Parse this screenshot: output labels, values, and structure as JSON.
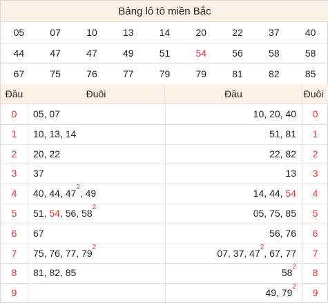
{
  "title": "Bảng lô tô miền Bắc",
  "grid": [
    [
      "05",
      "07",
      "10",
      "13",
      "14",
      "20",
      "22",
      "37",
      "40"
    ],
    [
      "44",
      "47",
      "47",
      "49",
      "51",
      "54",
      "56",
      "58",
      "58"
    ],
    [
      "67",
      "75",
      "76",
      "77",
      "79",
      "79",
      "81",
      "82",
      "85"
    ]
  ],
  "grid_highlight": [
    [
      1,
      5
    ]
  ],
  "headers": {
    "left_dau": "Đầu",
    "left_duoi": "Đuôi",
    "right_dau": "Đầu",
    "right_duoi": "Đuôi"
  },
  "left_rows": [
    {
      "num": "0",
      "items": [
        {
          "v": "05"
        },
        {
          "v": "07"
        }
      ]
    },
    {
      "num": "1",
      "items": [
        {
          "v": "10"
        },
        {
          "v": "13"
        },
        {
          "v": "14"
        }
      ]
    },
    {
      "num": "2",
      "items": [
        {
          "v": "20"
        },
        {
          "v": "22"
        }
      ]
    },
    {
      "num": "3",
      "items": [
        {
          "v": "37"
        }
      ]
    },
    {
      "num": "4",
      "items": [
        {
          "v": "40"
        },
        {
          "v": "44"
        },
        {
          "v": "47",
          "sup": "2"
        },
        {
          "v": "49"
        }
      ]
    },
    {
      "num": "5",
      "items": [
        {
          "v": "51"
        },
        {
          "v": "54",
          "red": true
        },
        {
          "v": "56"
        },
        {
          "v": "58",
          "sup": "2"
        }
      ]
    },
    {
      "num": "6",
      "items": [
        {
          "v": "67"
        }
      ]
    },
    {
      "num": "7",
      "items": [
        {
          "v": "75"
        },
        {
          "v": "76"
        },
        {
          "v": "77"
        },
        {
          "v": "79",
          "sup": "2"
        }
      ]
    },
    {
      "num": "8",
      "items": [
        {
          "v": "81"
        },
        {
          "v": "82"
        },
        {
          "v": "85"
        }
      ]
    },
    {
      "num": "9",
      "items": []
    }
  ],
  "right_rows": [
    {
      "num": "0",
      "items": [
        {
          "v": "10"
        },
        {
          "v": "20"
        },
        {
          "v": "40"
        }
      ]
    },
    {
      "num": "1",
      "items": [
        {
          "v": "51"
        },
        {
          "v": "81"
        }
      ]
    },
    {
      "num": "2",
      "items": [
        {
          "v": "22"
        },
        {
          "v": "82"
        }
      ]
    },
    {
      "num": "3",
      "items": [
        {
          "v": "13"
        }
      ]
    },
    {
      "num": "4",
      "items": [
        {
          "v": "14"
        },
        {
          "v": "44"
        },
        {
          "v": "54",
          "red": true
        }
      ]
    },
    {
      "num": "5",
      "items": [
        {
          "v": "05"
        },
        {
          "v": "75"
        },
        {
          "v": "85"
        }
      ]
    },
    {
      "num": "6",
      "items": [
        {
          "v": "56"
        },
        {
          "v": "76"
        }
      ]
    },
    {
      "num": "7",
      "items": [
        {
          "v": "07"
        },
        {
          "v": "37"
        },
        {
          "v": "47",
          "sup": "2"
        },
        {
          "v": "67"
        },
        {
          "v": "77"
        }
      ]
    },
    {
      "num": "8",
      "items": [
        {
          "v": "58",
          "sup": "2"
        }
      ]
    },
    {
      "num": "9",
      "items": [
        {
          "v": "49"
        },
        {
          "v": "79",
          "sup": "2"
        }
      ]
    }
  ],
  "colors": {
    "accent_red": "#e0333b",
    "header_bg": "#fcf1e6"
  }
}
